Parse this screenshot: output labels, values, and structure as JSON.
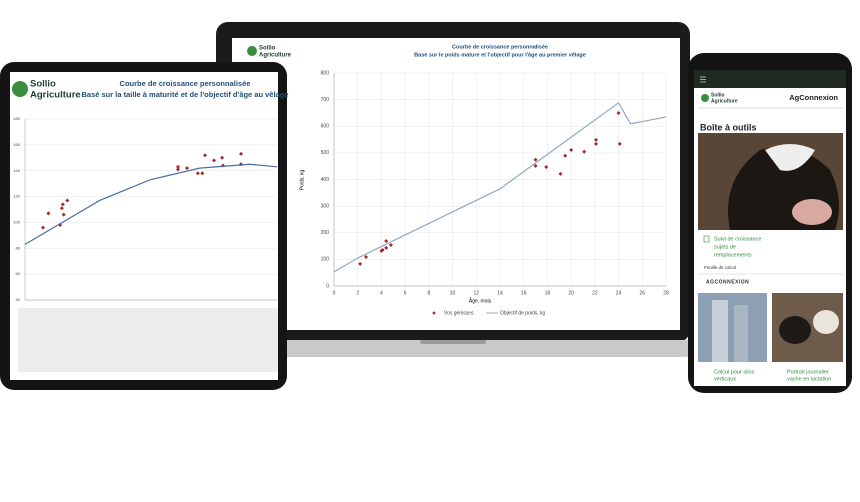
{
  "brand": {
    "line1": "Sollio",
    "line2": "Agriculture"
  },
  "chart_data": [
    {
      "type": "scatter",
      "title": "Courbe de croissance personnalisée",
      "subtitle": "Basé sur le poids mature et l'objectif pour l'âge au premier vêlage",
      "x_label": "Âge, mois",
      "y_label": "Poids, kg",
      "xlim": [
        0,
        28
      ],
      "xticks": [
        0,
        2,
        4,
        6,
        8,
        10,
        12,
        14,
        16,
        18,
        20,
        22,
        24,
        26,
        28
      ],
      "ylim": [
        0,
        800
      ],
      "yticks": [
        0,
        100,
        200,
        300,
        400,
        500,
        600,
        700,
        800
      ],
      "grid": true,
      "legend": "bottom",
      "series": [
        {
          "name": "Vos génisses",
          "type": "scatter",
          "color": "#a52a2a",
          "x": [
            2.2,
            2.7,
            4.0,
            4.1,
            4.4,
            4.4,
            4.8,
            17.0,
            17.0,
            17.9,
            19.1,
            19.5,
            20.0,
            21.1,
            22.1,
            22.1,
            24.0,
            24.1
          ],
          "values": [
            83,
            109,
            132,
            135,
            143,
            169,
            154,
            474,
            451,
            447,
            421,
            489,
            511,
            504,
            549,
            534,
            650,
            534
          ]
        },
        {
          "name": "Objectif de poids, kg",
          "type": "line",
          "color": "#8ea9c8",
          "x": [
            0,
            2,
            14,
            24,
            25,
            28
          ],
          "values": [
            53,
            105,
            365,
            688,
            609,
            635
          ]
        }
      ]
    },
    {
      "type": "scatter",
      "title": "Courbe de croissance personnalisée",
      "subtitle": "Basé sur la taille à maturité et de l'objectif d'âge au vêlage",
      "xlim": [
        0,
        28
      ],
      "ylim": [
        40,
        180
      ],
      "yticks": [
        40,
        60,
        80,
        100,
        120,
        140,
        160,
        180
      ],
      "grid": true,
      "series": [
        {
          "type": "scatter",
          "color": "#a52a2a",
          "x": [
            2.0,
            2.6,
            3.9,
            4.1,
            4.2,
            4.3,
            4.7,
            17.0,
            17.0,
            18.0,
            19.2,
            19.7,
            20.0,
            21.0,
            21.9,
            22.0,
            24.0,
            24.0
          ],
          "values": [
            96,
            107,
            98,
            111,
            114,
            106,
            117,
            143,
            141,
            142,
            138,
            138,
            152,
            148,
            150,
            144,
            153,
            145
          ]
        },
        {
          "type": "line",
          "color": "#4a6fa5",
          "x": [
            0,
            8.3,
            13.9,
            19.4,
            25,
            28
          ],
          "values": [
            83,
            117,
            133,
            142,
            145,
            143
          ]
        }
      ]
    }
  ],
  "phone": {
    "site": "AgConnexion",
    "section": "Boîte à outils",
    "tool_title": [
      "Suivi de croissance",
      "sujets de",
      "remplacements"
    ],
    "tool_type": "Feuille de calcul",
    "tool_source": "AGCONNEXION",
    "card1": [
      "Calcul pour silos",
      "verticaux"
    ],
    "card2": [
      "Portrait journalier",
      "vache en lactation"
    ]
  }
}
